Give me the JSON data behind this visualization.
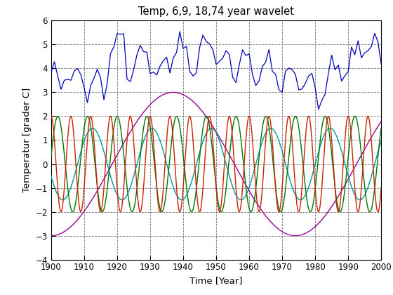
{
  "title": "Temp, 6,9, 18,74 year wavelet",
  "xlabel": "Time [Year]",
  "ylabel": "Temperatur [grader C]",
  "xlim": [
    1900,
    2000
  ],
  "ylim": [
    -4,
    6
  ],
  "yticks": [
    -4,
    -3,
    -2,
    -1,
    0,
    1,
    2,
    3,
    4,
    5,
    6
  ],
  "xticks": [
    1900,
    1910,
    1920,
    1930,
    1940,
    1950,
    1960,
    1970,
    1980,
    1990,
    2000
  ],
  "background_color": "#ffffff",
  "line_colors": {
    "blue": "#0000bb",
    "red": "#cc2200",
    "green": "#007700",
    "cyan": "#009999",
    "magenta": "#990099"
  }
}
